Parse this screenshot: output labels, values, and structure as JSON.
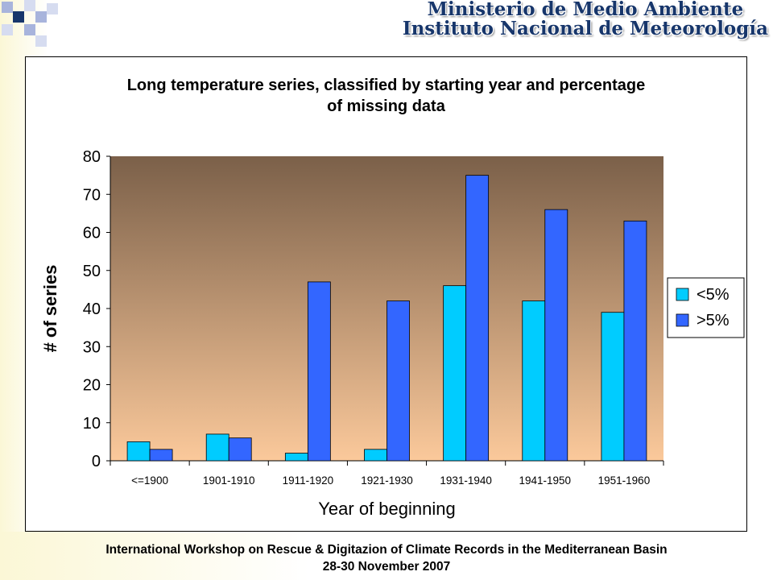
{
  "header": {
    "line1": "Ministerio de Medio Ambiente",
    "line2": "Instituto Nacional de Meteorología"
  },
  "footer": {
    "line1": "International Workshop on Rescue & Digitazion of Climate Records in the Mediterranean Basin",
    "line2": "28-30 November 2007"
  },
  "colors": {
    "series_lt5": "#00ccff",
    "series_gt5": "#3366ff",
    "plot_top": "#7b6049",
    "plot_bottom": "#fbc99b"
  },
  "chart_data": {
    "type": "bar",
    "title_line1": "Long temperature series, classified by starting year and percentage",
    "title_line2": "of missing data",
    "xlabel": "Year of beginning",
    "ylabel": "# of series",
    "ylim": [
      0,
      80
    ],
    "yticks": [
      "0",
      "10",
      "20",
      "30",
      "40",
      "50",
      "60",
      "70",
      "80"
    ],
    "categories": [
      "<=1900",
      "1901-1910",
      "1911-1920",
      "1921-1930",
      "1931-1940",
      "1941-1950",
      "1951-1960"
    ],
    "series": [
      {
        "name": "<5%",
        "values": [
          5,
          7,
          2,
          3,
          46,
          42,
          39
        ]
      },
      {
        "name": ">5%",
        "values": [
          3,
          6,
          47,
          42,
          75,
          66,
          63
        ]
      }
    ],
    "legend_position": "right",
    "grid": false
  }
}
